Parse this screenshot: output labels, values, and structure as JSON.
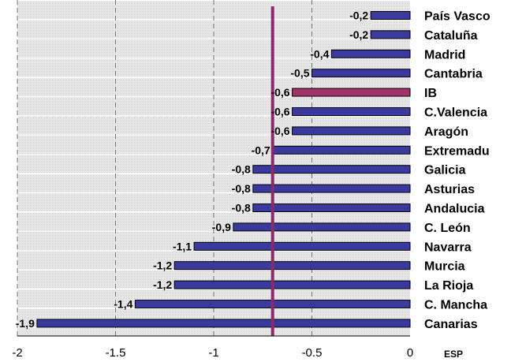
{
  "chart_data": {
    "type": "bar",
    "orientation": "horizontal",
    "categories": [
      "País Vasco",
      "Cataluña",
      "Madrid",
      "Cantabria",
      "IB",
      "C.Valencia",
      "Aragón",
      "Extremadu",
      "Galicia",
      "Asturias",
      "Andalucia",
      "C. León",
      "Navarra",
      "Murcia",
      "La Rioja",
      "C. Mancha",
      "Canarias"
    ],
    "values": [
      -0.2,
      -0.2,
      -0.4,
      -0.5,
      -0.6,
      -0.6,
      -0.6,
      -0.7,
      -0.8,
      -0.8,
      -0.8,
      -0.9,
      -1.1,
      -1.2,
      -1.2,
      -1.4,
      -1.9
    ],
    "value_labels": [
      "-0,2",
      "-0,2",
      "-0,4",
      "-0,5",
      "-0,6",
      "-0,6",
      "-0,6",
      "-0,7",
      "-0,8",
      "-0,8",
      "-0,8",
      "-0,9",
      "-1,1",
      "-1,2",
      "-1,2",
      "-1,4",
      "-1,9"
    ],
    "highlighted_category": "IB",
    "reference_line": {
      "label": "ESP",
      "value": -0.7
    },
    "x_ticks": [
      -2,
      -1.5,
      -1,
      -0.5,
      0
    ],
    "x_tick_labels": [
      "-2",
      "-1.5",
      "-1",
      "-0.5",
      "0"
    ],
    "xlim": [
      -2,
      0
    ],
    "grid": "vertical dashed",
    "legend": "none",
    "colors": {
      "bar": "#3a3a9e",
      "bar_highlight": "#a0336a",
      "bar_edge": "#000000",
      "reference_line": "#8b2a6b",
      "plot_background": "#e6e6e6",
      "grid": "#777777"
    }
  }
}
